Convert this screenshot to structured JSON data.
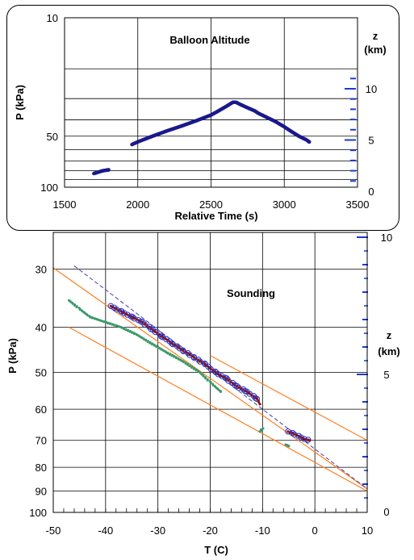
{
  "colors": {
    "balloon": "#1a1a8c",
    "sounding_temp": "#8b1010",
    "sounding_circles": "#2233cc",
    "dewpoint": "#3a9a6a",
    "dry_adiabat": "#ff7f1f",
    "moist_adiabat": "#4a3aa8",
    "z_ticks": "#1a3ad0"
  },
  "chart_data": [
    {
      "type": "scatter",
      "title": "Balloon Altitude",
      "xlabel": "Relative Time (s)",
      "ylabel": "P (kPa)",
      "y2label_line1": "z",
      "y2label_line2": "(km)",
      "xlim": [
        1500,
        3500
      ],
      "ylim": [
        10,
        100
      ],
      "yscale": "log-inverted",
      "y2lim": [
        0,
        12
      ],
      "x_ticks": [
        "1500",
        "2000",
        "2500",
        "3000",
        "3500"
      ],
      "y_ticks": [
        "10",
        "50",
        "100"
      ],
      "y2_ticks": [
        "0",
        "5",
        "10"
      ],
      "grid": true,
      "series": [
        {
          "x": [
            1700,
            1720,
            1740,
            1760,
            1800,
            1960,
            2000,
            2100,
            2200,
            2300,
            2400,
            2500,
            2550,
            2600,
            2650,
            2670,
            2700,
            2750,
            2800,
            2820,
            2940,
            3000,
            3050,
            3100,
            3150,
            3170
          ],
          "y": [
            83,
            82,
            81,
            80,
            79,
            56,
            54,
            50,
            46.5,
            43.5,
            40.5,
            37.5,
            35.5,
            33.5,
            31.5,
            31.5,
            32.5,
            34,
            35.5,
            36.5,
            41,
            44,
            47,
            50,
            52.5,
            54
          ]
        }
      ]
    },
    {
      "type": "scatter",
      "title": "Sounding",
      "xlabel": "T (C)",
      "ylabel": "P (kPa)",
      "y2label_line1": "z",
      "y2label_line2": "(km)",
      "xlim": [
        -50,
        10
      ],
      "ylim": [
        25,
        100
      ],
      "yscale": "log-inverted",
      "y2lim": [
        0,
        10
      ],
      "x_ticks": [
        "-50",
        "-40",
        "-30",
        "-20",
        "-10",
        "0",
        "10"
      ],
      "y_ticks": [
        "30",
        "40",
        "50",
        "60",
        "70",
        "80",
        "90",
        "100"
      ],
      "y2_ticks": [
        "0",
        "5",
        "10"
      ],
      "grid": true,
      "series": [
        {
          "role": "temperature",
          "x": [
            -39,
            -37,
            -35,
            -33,
            -31,
            -29,
            -27,
            -25,
            -23,
            -21,
            -19,
            -17,
            -15,
            -13,
            -11,
            -10.5,
            -5,
            -2,
            -1
          ],
          "y": [
            36,
            37,
            38,
            39,
            40.5,
            42,
            43.5,
            45,
            46.5,
            48,
            50,
            51.5,
            53.5,
            55,
            57,
            58.5,
            67,
            69.5,
            70
          ]
        },
        {
          "role": "dewpoint",
          "x": [
            -47,
            -45,
            -43,
            -40,
            -37,
            -34,
            -31,
            -28,
            -25,
            -22,
            -20,
            -18,
            -10,
            -10.5,
            -5.5,
            -5
          ],
          "y": [
            35,
            36.5,
            38,
            39,
            40,
            41.5,
            43.5,
            45.5,
            47.5,
            50,
            52.5,
            55,
            66,
            67,
            71.5,
            72
          ]
        },
        {
          "role": "dry_adiabat_1",
          "x": [
            -50,
            10
          ],
          "y": [
            29.8,
            89
          ]
        },
        {
          "role": "dry_adiabat_2",
          "x": [
            -47,
            10
          ],
          "y": [
            40,
            90
          ]
        },
        {
          "role": "moist_adiabat",
          "x": [
            -46,
            10
          ],
          "y": [
            29.5,
            89
          ]
        }
      ]
    }
  ]
}
